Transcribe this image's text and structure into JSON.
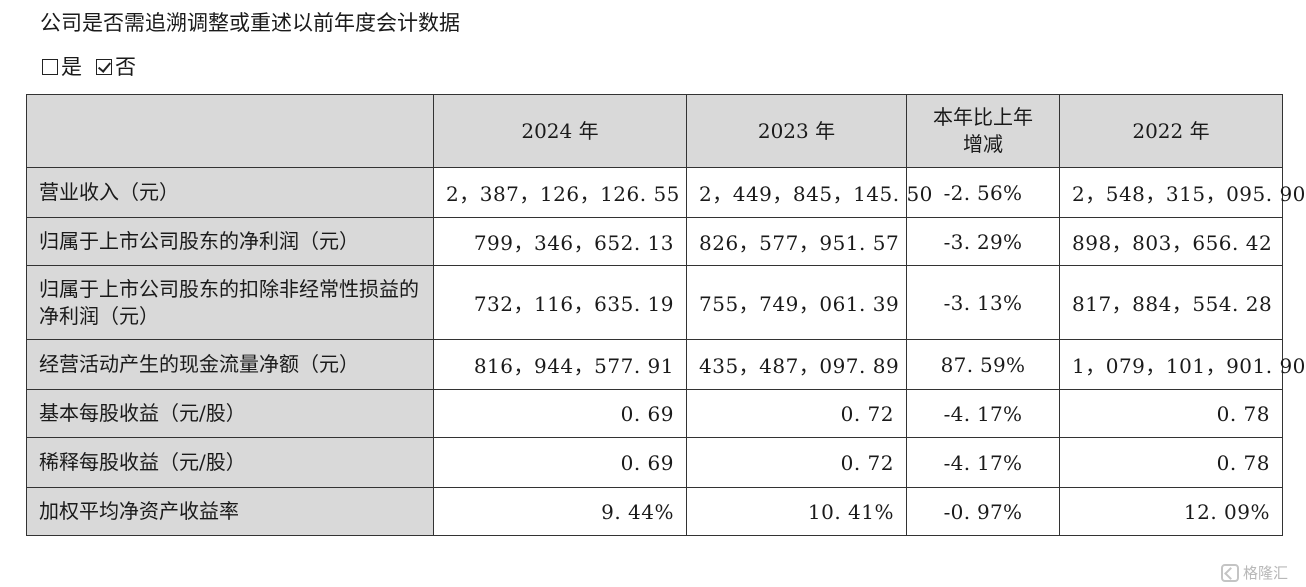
{
  "question": "公司是否需追溯调整或重述以前年度会计数据",
  "options": [
    {
      "label": "是",
      "checked": false
    },
    {
      "label": "否",
      "checked": true
    }
  ],
  "table": {
    "headers": [
      "",
      "2024 年",
      "2023 年",
      "本年比上年增减",
      "2022 年"
    ],
    "rows": [
      {
        "label": "营业收入（元）",
        "y2024": "2，387，126，126. 55",
        "y2023": "2，449，845，145. 50",
        "change": "-2. 56%",
        "y2022": "2，548，315，095. 90"
      },
      {
        "label": "归属于上市公司股东的净利润（元）",
        "y2024": "799，346，652. 13",
        "y2023": "826，577，951. 57",
        "change": "-3. 29%",
        "y2022": "898，803，656. 42"
      },
      {
        "label": "归属于上市公司股东的扣除非经常性损益的净利润（元）",
        "y2024": "732，116，635. 19",
        "y2023": "755，749，061. 39",
        "change": "-3. 13%",
        "y2022": "817，884，554. 28"
      },
      {
        "label": "经营活动产生的现金流量净额（元）",
        "y2024": "816，944，577. 91",
        "y2023": "435，487，097. 89",
        "change": "87. 59%",
        "y2022": "1，079，101，901. 90"
      },
      {
        "label": "基本每股收益（元/股）",
        "y2024": "0. 69",
        "y2023": "0. 72",
        "change": "-4. 17%",
        "y2022": "0. 78"
      },
      {
        "label": "稀释每股收益（元/股）",
        "y2024": "0. 69",
        "y2023": "0. 72",
        "change": "-4. 17%",
        "y2022": "0. 78"
      },
      {
        "label": "加权平均净资产收益率",
        "y2024": "9. 44%",
        "y2023": "10. 41%",
        "change": "-0. 97%",
        "y2022": "12. 09%"
      }
    ]
  },
  "watermark": "格隆汇"
}
